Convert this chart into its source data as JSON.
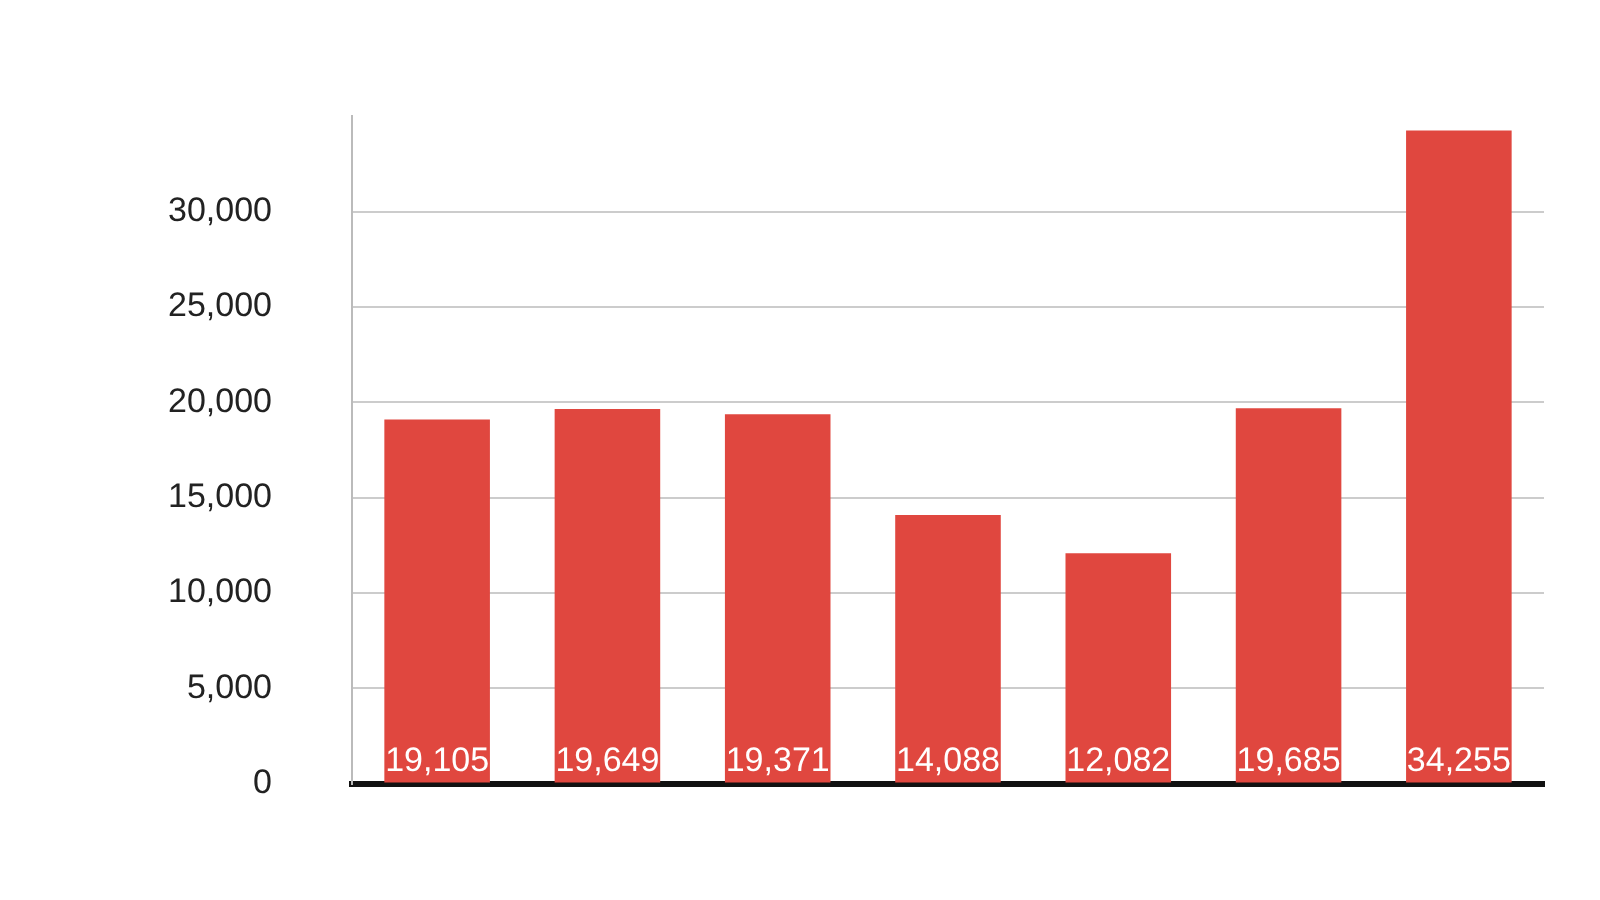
{
  "chart_data": {
    "type": "bar",
    "categories": [
      null,
      null,
      null,
      null,
      null,
      null,
      null
    ],
    "values": [
      19105,
      19649,
      19371,
      14088,
      12082,
      19685,
      34255
    ],
    "value_labels": [
      "19,105",
      "19,649",
      "19,371",
      "14,088",
      "12,082",
      "19,685",
      "34,255"
    ],
    "color": "#e0473f",
    "ylim": [
      0,
      35000
    ],
    "yticks": [
      0,
      {
        "value": 5000,
        "label": "5,000"
      },
      {
        "value": 10000,
        "label": "10,000"
      },
      {
        "value": 15000,
        "label": "15,000"
      },
      {
        "value": 20000,
        "label": "20,000"
      },
      {
        "value": 25000,
        "label": "25,000"
      },
      {
        "value": 30000,
        "label": "30,000"
      }
    ],
    "grid": "y"
  }
}
